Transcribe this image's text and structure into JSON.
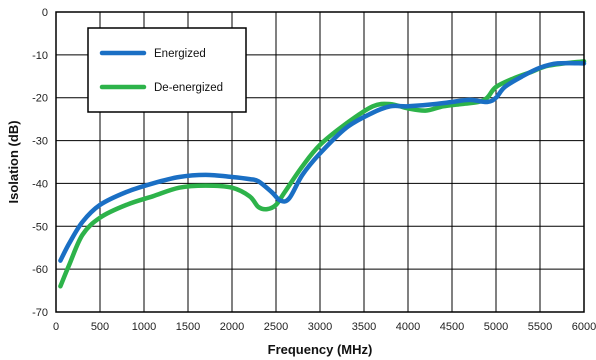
{
  "chart_data": {
    "type": "line",
    "title": "",
    "xlabel": "Frequency (MHz)",
    "ylabel": "Isolation (dB)",
    "xlim": [
      0,
      6000
    ],
    "ylim": [
      -70,
      0
    ],
    "xticks": [
      0,
      500,
      1000,
      1500,
      2000,
      2500,
      3000,
      3500,
      4000,
      4500,
      5000,
      5500,
      6000
    ],
    "yticks": [
      0,
      -10,
      -20,
      -30,
      -40,
      -50,
      -60,
      -70
    ],
    "grid": true,
    "legend_position": "top-left",
    "series": [
      {
        "name": "Energized",
        "color": "#1a6fc4",
        "x": [
          50,
          150,
          300,
          500,
          800,
          1100,
          1400,
          1700,
          2000,
          2200,
          2300,
          2450,
          2550,
          2650,
          2800,
          3000,
          3300,
          3600,
          3800,
          4000,
          4300,
          4500,
          4700,
          4900,
          5000,
          5100,
          5300,
          5500,
          5700,
          6000
        ],
        "y": [
          -58,
          -54,
          -49,
          -45,
          -42,
          -40,
          -38.5,
          -38,
          -38.5,
          -39,
          -39.5,
          -42,
          -44,
          -43.5,
          -38,
          -33,
          -27,
          -23.5,
          -22,
          -22,
          -21.5,
          -21,
          -20.5,
          -21,
          -20,
          -17.5,
          -15,
          -13,
          -12,
          -12
        ]
      },
      {
        "name": "De-energized",
        "color": "#2db34a",
        "x": [
          50,
          150,
          300,
          500,
          800,
          1100,
          1400,
          1700,
          2000,
          2200,
          2300,
          2400,
          2500,
          2600,
          2800,
          3000,
          3300,
          3600,
          3800,
          4000,
          4200,
          4400,
          4600,
          4800,
          4900,
          5000,
          5200,
          5400,
          5600,
          6000
        ],
        "y": [
          -64,
          -59,
          -52,
          -48,
          -45,
          -43,
          -41,
          -40.5,
          -41,
          -43,
          -45.5,
          -46,
          -45,
          -42,
          -36,
          -31,
          -26,
          -22,
          -21.5,
          -22.5,
          -23,
          -22,
          -21.5,
          -21,
          -20,
          -17.5,
          -15.5,
          -14,
          -12.5,
          -11.5
        ]
      }
    ]
  }
}
